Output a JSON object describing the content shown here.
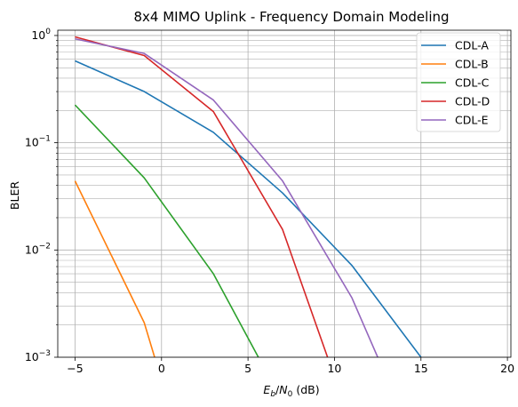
{
  "chart_data": {
    "type": "line",
    "title": "8x4 MIMO Uplink - Frequency Domain Modeling",
    "xlabel_parts": {
      "var": "E",
      "sub1": "b",
      "slash": "/",
      "var2": "N",
      "sub2": "0",
      "unit": " (dB)"
    },
    "ylabel": "BLER",
    "xlim": [
      -6,
      20.2
    ],
    "ylim": [
      0.001,
      1.12
    ],
    "yscale": "log",
    "grid": true,
    "legend_position": "top-right",
    "x_ticks": [
      -5,
      0,
      5,
      10,
      15,
      20
    ],
    "x_tick_labels": [
      "−5",
      "0",
      "5",
      "10",
      "15",
      "20"
    ],
    "y_ticks": [
      0.001,
      0.01,
      0.1,
      1
    ],
    "y_tick_labels": [
      {
        "base": "10",
        "exp": "−3"
      },
      {
        "base": "10",
        "exp": "−2"
      },
      {
        "base": "10",
        "exp": "−1"
      },
      {
        "base": "10",
        "exp": "0"
      }
    ],
    "series": [
      {
        "name": "CDL-A",
        "color": "#1f77b4",
        "x": [
          -5,
          -1,
          3,
          7,
          11,
          15
        ],
        "y": [
          0.58,
          0.3,
          0.125,
          0.034,
          0.0072,
          0.001
        ]
      },
      {
        "name": "CDL-B",
        "color": "#ff7f0e",
        "x": [
          -5,
          -1,
          -0.4
        ],
        "y": [
          0.044,
          0.0021,
          0.001
        ]
      },
      {
        "name": "CDL-C",
        "color": "#2ca02c",
        "x": [
          -5,
          -1,
          3,
          5.6
        ],
        "y": [
          0.225,
          0.047,
          0.006,
          0.001
        ]
      },
      {
        "name": "CDL-D",
        "color": "#d62728",
        "x": [
          -5,
          -1,
          3,
          7,
          9.6
        ],
        "y": [
          0.97,
          0.65,
          0.195,
          0.0155,
          0.001
        ]
      },
      {
        "name": "CDL-E",
        "color": "#9467bd",
        "x": [
          -5,
          -1,
          3,
          7,
          11,
          12.5
        ],
        "y": [
          0.93,
          0.68,
          0.25,
          0.044,
          0.0036,
          0.001
        ]
      }
    ]
  }
}
